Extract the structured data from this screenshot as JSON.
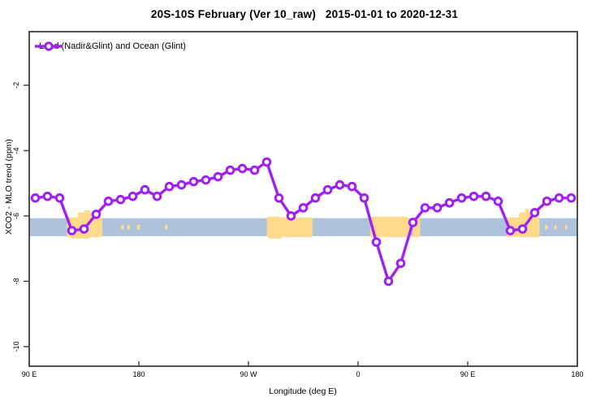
{
  "title": "20S-10S February (Ver 10_raw)   2015-01-01 to 2020-12-31",
  "legend": {
    "label": "Land (Nadir&Glint) and Ocean (Glint)"
  },
  "colors": {
    "series": "#A020F0",
    "ocean_band": "#AEC2DB",
    "land_patch": "#FFD98C",
    "frame": "#3c3c3c"
  },
  "chart_data": {
    "type": "line",
    "title": "20S-10S February (Ver 10_raw)   2015-01-01 to 2020-12-31",
    "xlabel": "Longitude (deg E)",
    "ylabel": "XCO2 - MLO trend (ppm)",
    "legend_position": "top-left",
    "grid": false,
    "x_axis_wraps_longitude": true,
    "x_ticks": {
      "positions": [
        90,
        180,
        270,
        360,
        450,
        540
      ],
      "labels": [
        "90 E",
        "180",
        "90 W",
        "0",
        "90 E",
        "180"
      ]
    },
    "y_ticks": {
      "positions": [
        -2,
        -4,
        -6,
        -8,
        -10
      ],
      "labels": [
        "-2",
        "-4",
        "-6",
        "-8",
        "-10"
      ]
    },
    "xlim": [
      90,
      540
    ],
    "ylim": [
      -10.6,
      -0.36
    ],
    "series": [
      {
        "name": "Land (Nadir&Glint) and Ocean (Glint)",
        "marker": "open-circle",
        "x": [
          95,
          105,
          115,
          125,
          135,
          145,
          155,
          165,
          175,
          185,
          195,
          205,
          215,
          225,
          235,
          245,
          255,
          265,
          275,
          285,
          295,
          305,
          315,
          325,
          335,
          345,
          355,
          365,
          375,
          385,
          395,
          405,
          415,
          425,
          435,
          445,
          455,
          465,
          475,
          485,
          495,
          505,
          515,
          525,
          535
        ],
        "values": [
          -5.45,
          -5.4,
          -5.45,
          -6.45,
          -6.4,
          -5.95,
          -5.55,
          -5.5,
          -5.4,
          -5.2,
          -5.4,
          -5.1,
          -5.05,
          -4.95,
          -4.9,
          -4.8,
          -4.6,
          -4.55,
          -4.6,
          -4.35,
          -5.45,
          -6.0,
          -5.75,
          -5.45,
          -5.2,
          -5.05,
          -5.1,
          -5.45,
          -6.8,
          -8.0,
          -7.45,
          -6.2,
          -5.75,
          -5.75,
          -5.6,
          -5.45,
          -5.4,
          -5.4,
          -5.55,
          -6.45,
          -6.4,
          -5.9,
          -5.55,
          -5.45,
          -5.45
        ]
      }
    ],
    "map_strip": {
      "description": "latitude-band surface map: ocean blue strip with land in orange",
      "band_value_range": [
        -6.07,
        -6.62
      ],
      "land_patches": [
        {
          "name": "australia",
          "from": 121,
          "to": 150,
          "small": false
        },
        {
          "name": "island",
          "from": 165.5,
          "to": 167.5,
          "small": true
        },
        {
          "name": "island",
          "from": 170.5,
          "to": 172.5,
          "small": true
        },
        {
          "name": "island",
          "from": 178.5,
          "to": 181,
          "small": true
        },
        {
          "name": "island",
          "from": 201.5,
          "to": 203.5,
          "small": true
        },
        {
          "name": "south-america",
          "from": 285,
          "to": 322.5,
          "small": false
        },
        {
          "name": "africa",
          "from": 370,
          "to": 402,
          "small": false
        },
        {
          "name": "madagascar",
          "from": 405,
          "to": 411,
          "small": false
        },
        {
          "name": "australia",
          "from": 482,
          "to": 509,
          "small": false
        },
        {
          "name": "island",
          "from": 513.5,
          "to": 515.5,
          "small": true
        },
        {
          "name": "island",
          "from": 521.5,
          "to": 523,
          "small": true
        },
        {
          "name": "island",
          "from": 530,
          "to": 531.5,
          "small": true
        }
      ],
      "land_bumps_above": [
        {
          "from": 130,
          "to": 146,
          "h": 7
        },
        {
          "from": 135,
          "to": 140,
          "h": 10
        },
        {
          "from": 286,
          "to": 296,
          "h": 2
        },
        {
          "from": 371,
          "to": 400,
          "h": 2
        },
        {
          "from": 492,
          "to": 504,
          "h": 7
        },
        {
          "from": 497,
          "to": 500,
          "h": 12
        }
      ],
      "land_bumps_below": [
        {
          "from": 124,
          "to": 140,
          "h": 3
        },
        {
          "from": 286,
          "to": 297,
          "h": 3
        }
      ]
    }
  }
}
